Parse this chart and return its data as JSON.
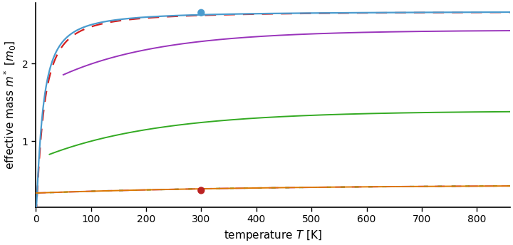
{
  "xlabel": "temperature $T$ [K]",
  "ylabel": "effective mass $m^*$ [$m_0$]",
  "xlim": [
    0,
    860
  ],
  "ylim": [
    0.15,
    2.78
  ],
  "yticks": [
    1.0,
    2.0
  ],
  "xticks": [
    0,
    100,
    200,
    300,
    400,
    500,
    600,
    700,
    800
  ],
  "blue_dot": [
    300,
    2.655
  ],
  "red_dot": [
    300,
    0.365
  ],
  "line_blue": {
    "color": "#4a9bce",
    "lw": 1.6,
    "zorder": 4
  },
  "line_red_dashed": {
    "color": "#d42020",
    "lw": 1.6,
    "zorder": 3
  },
  "line_purple": {
    "color": "#9933bb",
    "lw": 1.4,
    "zorder": 4
  },
  "line_green": {
    "color": "#33aa22",
    "lw": 1.4,
    "zorder": 4
  },
  "line_orange": {
    "color": "#dd7700",
    "lw": 1.4,
    "zorder": 4
  },
  "line_magenta_dashed": {
    "color": "#cc44cc",
    "lw": 1.4,
    "zorder": 3
  },
  "line_green_dashed": {
    "color": "#33aa22",
    "lw": 1.4,
    "zorder": 3
  },
  "background_color": "#ffffff",
  "dot_blue_color": "#4a9bce",
  "dot_red_color": "#bb2222",
  "dot_size": 55,
  "spine_lw": 1.2
}
